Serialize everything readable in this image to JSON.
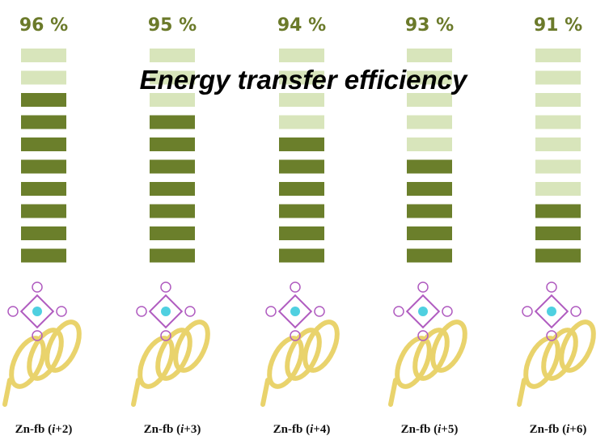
{
  "title": "Energy transfer efficiency",
  "levels": 10,
  "columns": [
    {
      "efficiency": "96 %",
      "filled": 8,
      "caption": {
        "prefix": "Zn-fb (",
        "italic": "i",
        "suffix": "+2)"
      }
    },
    {
      "efficiency": "95 %",
      "filled": 7,
      "caption": {
        "prefix": "Zn-fb (",
        "italic": "i",
        "suffix": "+3)"
      }
    },
    {
      "efficiency": "94 %",
      "filled": 6,
      "caption": {
        "prefix": "Zn-fb (",
        "italic": "i",
        "suffix": "+4)"
      }
    },
    {
      "efficiency": "93 %",
      "filled": 5,
      "caption": {
        "prefix": "Zn-fb (",
        "italic": "i",
        "suffix": "+5)"
      }
    },
    {
      "efficiency": "91 %",
      "filled": 3,
      "caption": {
        "prefix": "Zn-fb (",
        "italic": "i",
        "suffix": "+6)"
      }
    }
  ]
}
